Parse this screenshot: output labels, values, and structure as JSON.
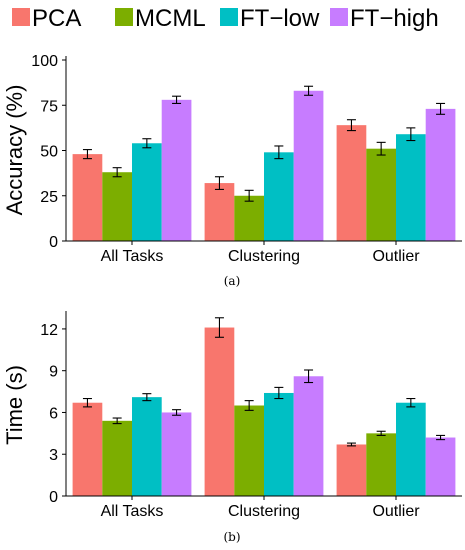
{
  "legend": {
    "entries": [
      {
        "name": "PCA",
        "color": "#F8766D"
      },
      {
        "name": "MCML",
        "color": "#7CAE00"
      },
      {
        "name": "FT−low",
        "color": "#00BFC4"
      },
      {
        "name": "FT−high",
        "color": "#C77CFF"
      }
    ],
    "placement": "top"
  },
  "chart_data": [
    {
      "type": "bar",
      "caption": "(a)",
      "categories": [
        "All Tasks",
        "Clustering",
        "Outlier"
      ],
      "series": [
        {
          "name": "PCA",
          "values": [
            48,
            32,
            64
          ],
          "error": [
            2.5,
            3.5,
            3.0
          ]
        },
        {
          "name": "MCML",
          "values": [
            38,
            25,
            51
          ],
          "error": [
            2.5,
            3.0,
            3.5
          ]
        },
        {
          "name": "FT−low",
          "values": [
            54,
            49,
            59
          ],
          "error": [
            2.5,
            3.5,
            3.5
          ]
        },
        {
          "name": "FT−high",
          "values": [
            78,
            83,
            73
          ],
          "error": [
            2.0,
            2.5,
            3.0
          ]
        }
      ],
      "xlabel": "",
      "ylabel": "Accuracy (%)",
      "ylim": [
        0,
        100
      ],
      "yticks": [
        0,
        25,
        50,
        75,
        100
      ],
      "error_bars": true,
      "grid": false
    },
    {
      "type": "bar",
      "caption": "(b)",
      "categories": [
        "All Tasks",
        "Clustering",
        "Outlier"
      ],
      "series": [
        {
          "name": "PCA",
          "values": [
            6.7,
            12.1,
            3.7
          ],
          "error": [
            0.3,
            0.7,
            0.1
          ]
        },
        {
          "name": "MCML",
          "values": [
            5.4,
            6.5,
            4.5
          ],
          "error": [
            0.2,
            0.35,
            0.15
          ]
        },
        {
          "name": "FT−low",
          "values": [
            7.1,
            7.4,
            6.7
          ],
          "error": [
            0.25,
            0.4,
            0.3
          ]
        },
        {
          "name": "FT−high",
          "values": [
            6.0,
            8.6,
            4.2
          ],
          "error": [
            0.2,
            0.45,
            0.15
          ]
        }
      ],
      "xlabel": "",
      "ylabel": "Time (s)",
      "ylim": [
        0,
        13
      ],
      "yticks": [
        0,
        3,
        6,
        9,
        12
      ],
      "error_bars": true,
      "grid": false
    }
  ]
}
